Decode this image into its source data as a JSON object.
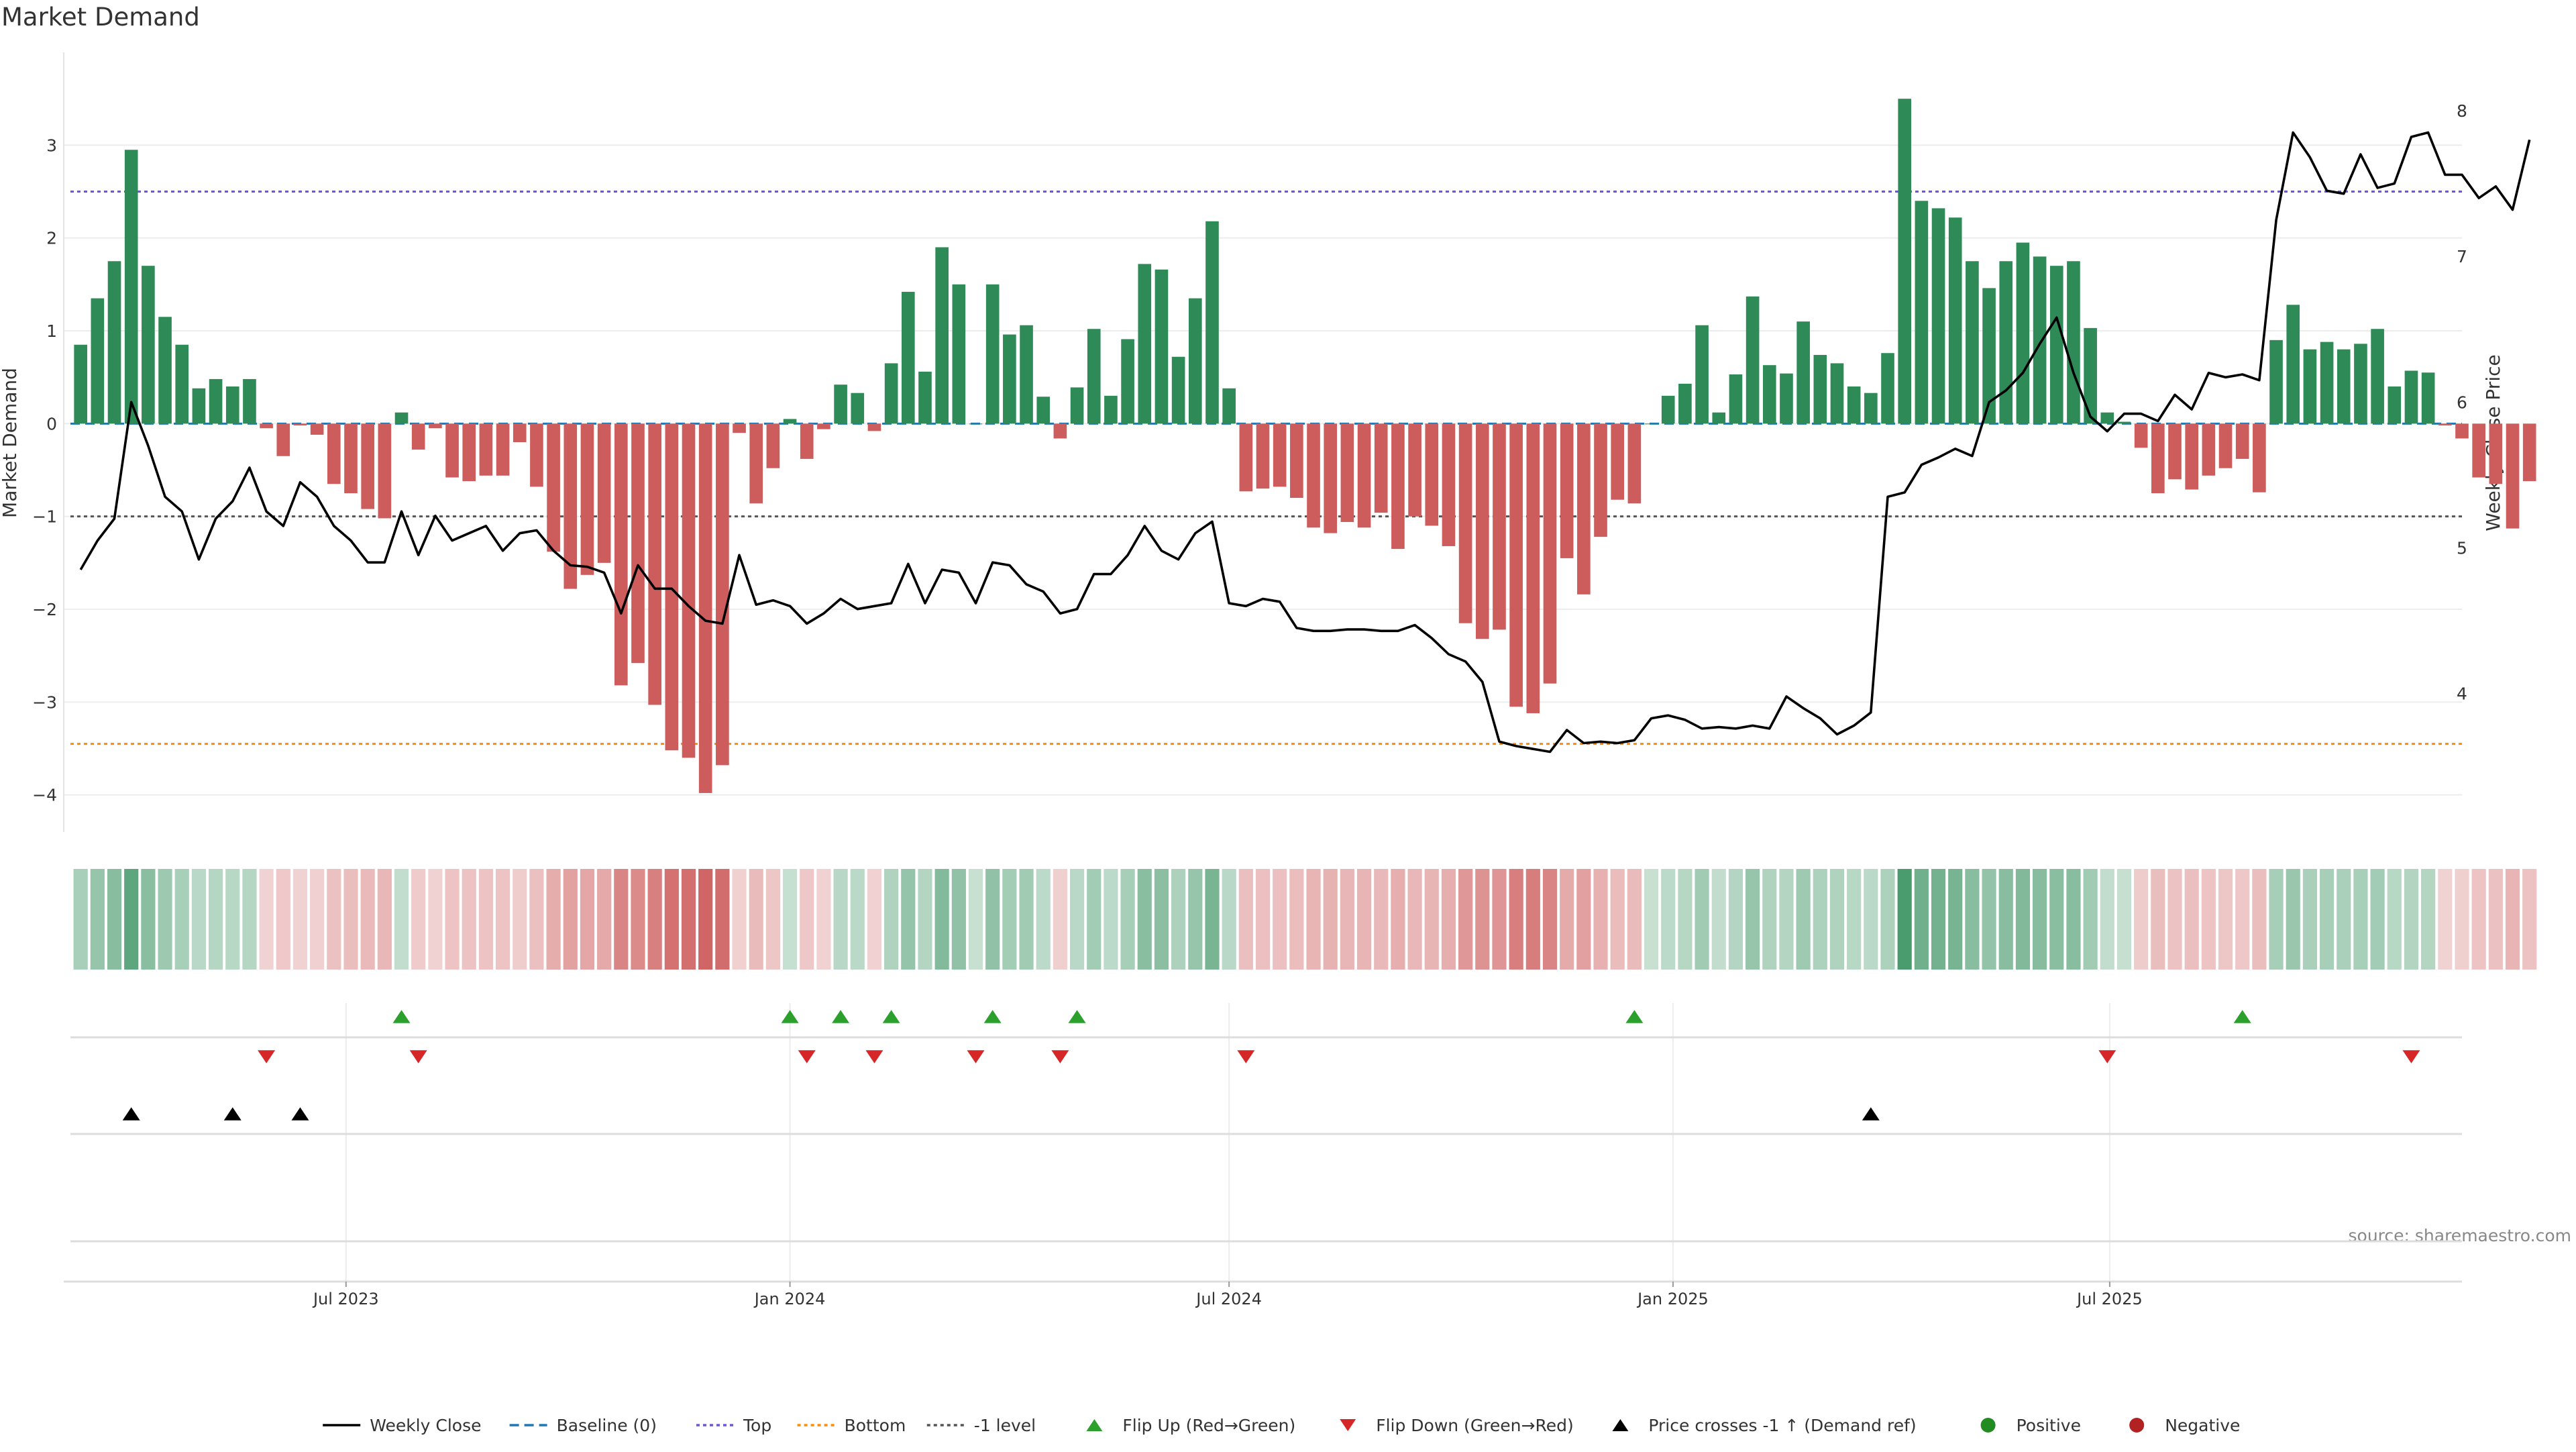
{
  "chart_data": {
    "type": "bar",
    "title": "Market Demand",
    "ylabel": "Market Demand",
    "y2label": "Weekly Close Price",
    "ylim": [
      -4.4,
      4.0
    ],
    "y2lim": [
      3.05,
      8.4
    ],
    "yticks": [
      -4,
      -3,
      -2,
      -1,
      0,
      1,
      2,
      3
    ],
    "y2ticks": [
      4,
      5,
      6,
      7,
      8
    ],
    "x_start": "2023-03-13",
    "x_interval_days": 7,
    "x_range": [
      "2023-03-06",
      "2025-11-24"
    ],
    "xticks": [
      {
        "date": "2023-07-01",
        "label": "Jul 2023"
      },
      {
        "date": "2024-01-01",
        "label": "Jan 2024"
      },
      {
        "date": "2024-07-01",
        "label": "Jul 2024"
      },
      {
        "date": "2025-01-01",
        "label": "Jan 2025"
      },
      {
        "date": "2025-07-01",
        "label": "Jul 2025"
      }
    ],
    "reference_lines": [
      {
        "name": "Baseline (0)",
        "value": 0,
        "color": "#1f77b4",
        "style": "dashed"
      },
      {
        "name": "Top",
        "value": 2.5,
        "color": "#6a5acd",
        "style": "dotted"
      },
      {
        "name": "Bottom",
        "value": -3.45,
        "color": "#ff8c00",
        "style": "dotted"
      },
      {
        "name": "-1 level",
        "value": -1.0,
        "color": "#555555",
        "style": "dotted"
      }
    ],
    "series": [
      {
        "name": "Market Demand",
        "kind": "bar",
        "values": [
          0.85,
          1.35,
          1.75,
          2.95,
          1.7,
          1.15,
          0.85,
          0.38,
          0.48,
          0.4,
          0.48,
          -0.05,
          -0.35,
          -0.02,
          -0.12,
          -0.65,
          -0.75,
          -0.92,
          -1.02,
          0.12,
          -0.28,
          -0.05,
          -0.58,
          -0.62,
          -0.56,
          -0.56,
          -0.2,
          -0.68,
          -1.38,
          -1.78,
          -1.63,
          -1.5,
          -2.82,
          -2.58,
          -3.03,
          -3.52,
          -3.6,
          -3.98,
          -3.68,
          -0.1,
          -0.86,
          -0.48,
          0.05,
          -0.38,
          -0.06,
          0.42,
          0.33,
          -0.08,
          0.65,
          1.42,
          0.56,
          1.9,
          1.5,
          0.0,
          1.5,
          0.96,
          1.06,
          0.29,
          -0.16,
          0.39,
          1.02,
          0.3,
          0.91,
          1.72,
          1.66,
          0.72,
          1.35,
          2.18,
          0.38,
          -0.73,
          -0.7,
          -0.68,
          -0.8,
          -1.12,
          -1.18,
          -1.06,
          -1.12,
          -0.96,
          -1.35,
          -1.0,
          -1.1,
          -1.32,
          -2.15,
          -2.32,
          -2.22,
          -3.05,
          -3.12,
          -2.8,
          -1.45,
          -1.84,
          -1.22,
          -0.82,
          -0.86,
          0.0,
          0.3,
          0.43,
          1.06,
          0.12,
          0.53,
          1.37,
          0.63,
          0.54,
          1.1,
          0.74,
          0.65,
          0.4,
          0.33,
          0.76,
          3.5,
          2.4,
          2.32,
          2.22,
          1.75,
          1.46,
          1.75,
          1.95,
          1.8,
          1.7,
          1.75,
          1.03,
          0.12,
          0.02,
          -0.26,
          -0.75,
          -0.6,
          -0.71,
          -0.56,
          -0.48,
          -0.38,
          -0.74,
          0.9,
          1.28,
          0.8,
          0.88,
          0.8,
          0.86,
          1.02,
          0.4,
          0.57,
          0.55,
          -0.02,
          -0.16,
          -0.58,
          -0.65,
          -1.13,
          -0.62
        ]
      },
      {
        "name": "Weekly Close",
        "kind": "line",
        "axis": "right",
        "color": "#000000",
        "values": [
          4.85,
          5.05,
          5.2,
          6.0,
          5.7,
          5.35,
          5.25,
          4.92,
          5.2,
          5.32,
          5.55,
          5.25,
          5.15,
          5.45,
          5.35,
          5.15,
          5.05,
          4.9,
          4.9,
          5.25,
          4.95,
          5.22,
          5.05,
          5.1,
          5.15,
          4.98,
          5.1,
          5.12,
          4.98,
          4.88,
          4.87,
          4.83,
          4.55,
          4.88,
          4.72,
          4.72,
          4.6,
          4.5,
          4.48,
          4.95,
          4.61,
          4.64,
          4.6,
          4.48,
          4.55,
          4.65,
          4.58,
          4.6,
          4.62,
          4.89,
          4.62,
          4.85,
          4.83,
          4.62,
          4.9,
          4.88,
          4.75,
          4.7,
          4.55,
          4.58,
          4.82,
          4.82,
          4.95,
          5.15,
          4.98,
          4.92,
          5.1,
          5.18,
          4.62,
          4.6,
          4.65,
          4.63,
          4.45,
          4.43,
          4.43,
          4.44,
          4.44,
          4.43,
          4.43,
          4.47,
          4.38,
          4.27,
          4.22,
          4.08,
          3.67,
          3.64,
          3.62,
          3.6,
          3.75,
          3.66,
          3.67,
          3.66,
          3.68,
          3.83,
          3.85,
          3.82,
          3.76,
          3.77,
          3.76,
          3.78,
          3.76,
          3.98,
          3.9,
          3.83,
          3.72,
          3.78,
          3.87,
          5.35,
          5.38,
          5.57,
          5.62,
          5.68,
          5.63,
          6.0,
          6.08,
          6.2,
          6.4,
          6.58,
          6.2,
          5.9,
          5.8,
          5.92,
          5.92,
          5.87,
          6.05,
          5.95,
          6.2,
          6.17,
          6.19,
          6.15,
          7.25,
          7.85,
          7.68,
          7.45,
          7.43,
          7.7,
          7.47,
          7.5,
          7.82,
          7.85,
          7.56,
          7.56,
          7.4,
          7.48,
          7.32,
          7.8
        ]
      }
    ],
    "heat_strip": {
      "scale": "demand",
      "colors": {
        "positive": "#2e8b57",
        "negative": "#cd5c5c"
      }
    },
    "flip_up": {
      "name": "Flip Up (Red→Green)",
      "color": "#2ca02c",
      "weeks": [
        19,
        42,
        45,
        48,
        54,
        59,
        92,
        128
      ]
    },
    "flip_down": {
      "name": "Flip Down (Green→Red)",
      "color": "#d62728",
      "weeks": [
        11,
        20,
        43,
        47,
        53,
        58,
        69,
        120,
        138
      ]
    },
    "price_crosses": {
      "name": "Price crosses -1 ↑ (Demand ref)",
      "color": "#000000",
      "weeks": [
        3,
        9,
        13,
        106
      ]
    },
    "legend": {
      "placement": "bottom-center",
      "items": [
        {
          "label": "Weekly Close",
          "kind": "line",
          "color": "#000000"
        },
        {
          "label": "Baseline (0)",
          "kind": "dash",
          "color": "#1f77b4"
        },
        {
          "label": "Top",
          "kind": "dot",
          "color": "#6a5acd"
        },
        {
          "label": "Bottom",
          "kind": "dot",
          "color": "#ff8c00"
        },
        {
          "label": "-1 level",
          "kind": "dot",
          "color": "#555555"
        },
        {
          "label": "Flip Up (Red→Green)",
          "kind": "up",
          "color": "#2ca02c"
        },
        {
          "label": "Flip Down (Green→Red)",
          "kind": "down",
          "color": "#d62728"
        },
        {
          "label": "Price crosses -1 ↑ (Demand ref)",
          "kind": "up",
          "color": "#000000"
        },
        {
          "label": "Positive",
          "kind": "dot-marker",
          "color": "#228b22"
        },
        {
          "label": "Negative",
          "kind": "dot-marker",
          "color": "#b22222"
        }
      ]
    },
    "grid": true,
    "source_note": "source: sharemaestro.com"
  }
}
